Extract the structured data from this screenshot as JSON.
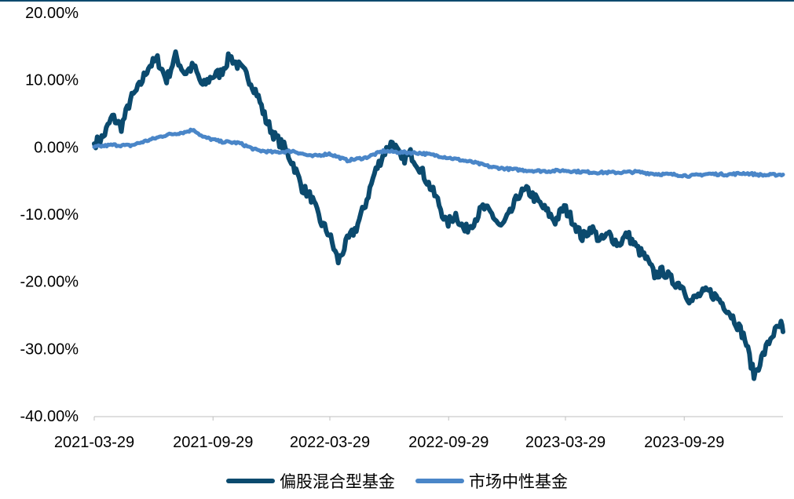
{
  "chart_data": {
    "type": "line",
    "title": "",
    "xlabel": "",
    "ylabel": "",
    "x_ticks": [
      "2021-03-29",
      "2021-09-29",
      "2022-03-29",
      "2022-09-29",
      "2023-03-29",
      "2023-09-29"
    ],
    "y_ticks": [
      "20.00%",
      "10.00%",
      "0.00%",
      "-10.00%",
      "-20.00%",
      "-30.00%",
      "-40.00%"
    ],
    "ylim": [
      -40,
      20
    ],
    "xlim": [
      "2021-03-29",
      "2024-02-29"
    ],
    "grid": false,
    "legend_position": "bottom",
    "series": [
      {
        "name": "偏股混合型基金",
        "color": "#0b4a6e",
        "points": [
          [
            "2021-03-29",
            0.5
          ],
          [
            "2021-04-12",
            1.5
          ],
          [
            "2021-04-26",
            4.5
          ],
          [
            "2021-05-10",
            3.0
          ],
          [
            "2021-05-24",
            7.0
          ],
          [
            "2021-06-07",
            9.0
          ],
          [
            "2021-06-21",
            12.0
          ],
          [
            "2021-07-05",
            13.0
          ],
          [
            "2021-07-19",
            10.0
          ],
          [
            "2021-08-02",
            13.5
          ],
          [
            "2021-08-16",
            11.0
          ],
          [
            "2021-08-30",
            12.0
          ],
          [
            "2021-09-13",
            9.0
          ],
          [
            "2021-09-27",
            10.5
          ],
          [
            "2021-10-11",
            11.0
          ],
          [
            "2021-10-25",
            13.5
          ],
          [
            "2021-11-08",
            12.0
          ],
          [
            "2021-11-22",
            10.5
          ],
          [
            "2021-12-06",
            8.0
          ],
          [
            "2021-12-20",
            4.0
          ],
          [
            "2022-01-03",
            1.5
          ],
          [
            "2022-01-17",
            0.0
          ],
          [
            "2022-01-31",
            -2.5
          ],
          [
            "2022-02-14",
            -6.0
          ],
          [
            "2022-02-28",
            -7.5
          ],
          [
            "2022-03-14",
            -11.0
          ],
          [
            "2022-03-28",
            -13.0
          ],
          [
            "2022-04-11",
            -17.0
          ],
          [
            "2022-04-25",
            -14.0
          ],
          [
            "2022-05-09",
            -12.0
          ],
          [
            "2022-05-23",
            -8.5
          ],
          [
            "2022-06-06",
            -4.0
          ],
          [
            "2022-06-20",
            -1.0
          ],
          [
            "2022-07-04",
            0.8
          ],
          [
            "2022-07-18",
            -2.0
          ],
          [
            "2022-08-01",
            -1.0
          ],
          [
            "2022-08-15",
            -3.0
          ],
          [
            "2022-08-29",
            -5.5
          ],
          [
            "2022-09-12",
            -8.0
          ],
          [
            "2022-09-26",
            -11.5
          ],
          [
            "2022-10-10",
            -10.0
          ],
          [
            "2022-10-24",
            -12.5
          ],
          [
            "2022-11-07",
            -11.0
          ],
          [
            "2022-11-21",
            -9.0
          ],
          [
            "2022-12-05",
            -10.0
          ],
          [
            "2022-12-19",
            -12.0
          ],
          [
            "2023-01-02",
            -10.0
          ],
          [
            "2023-01-16",
            -7.0
          ],
          [
            "2023-01-30",
            -6.5
          ],
          [
            "2023-02-13",
            -8.0
          ],
          [
            "2023-02-27",
            -9.5
          ],
          [
            "2023-03-13",
            -11.0
          ],
          [
            "2023-03-27",
            -9.0
          ],
          [
            "2023-04-10",
            -11.0
          ],
          [
            "2023-04-24",
            -13.5
          ],
          [
            "2023-05-08",
            -12.0
          ],
          [
            "2023-05-22",
            -14.0
          ],
          [
            "2023-06-05",
            -13.0
          ],
          [
            "2023-06-19",
            -14.5
          ],
          [
            "2023-07-03",
            -13.0
          ],
          [
            "2023-07-17",
            -15.0
          ],
          [
            "2023-07-31",
            -16.5
          ],
          [
            "2023-08-14",
            -19.0
          ],
          [
            "2023-08-28",
            -18.5
          ],
          [
            "2023-09-11",
            -20.0
          ],
          [
            "2023-09-25",
            -20.5
          ],
          [
            "2023-10-09",
            -23.0
          ],
          [
            "2023-10-23",
            -22.0
          ],
          [
            "2023-11-06",
            -21.5
          ],
          [
            "2023-11-20",
            -22.5
          ],
          [
            "2023-12-04",
            -24.0
          ],
          [
            "2023-12-18",
            -26.0
          ],
          [
            "2024-01-01",
            -28.5
          ],
          [
            "2024-01-15",
            -34.0
          ],
          [
            "2024-01-29",
            -31.0
          ],
          [
            "2024-02-12",
            -28.0
          ],
          [
            "2024-02-26",
            -26.5
          ],
          [
            "2024-02-29",
            -27.5
          ]
        ]
      },
      {
        "name": "市场中性基金",
        "color": "#4a86c8",
        "points": [
          [
            "2021-03-29",
            0.0
          ],
          [
            "2021-04-26",
            0.3
          ],
          [
            "2021-05-24",
            0.2
          ],
          [
            "2021-06-21",
            1.0
          ],
          [
            "2021-07-19",
            1.8
          ],
          [
            "2021-08-16",
            2.2
          ],
          [
            "2021-08-30",
            2.6
          ],
          [
            "2021-09-13",
            1.5
          ],
          [
            "2021-10-11",
            0.8
          ],
          [
            "2021-11-08",
            0.6
          ],
          [
            "2021-12-06",
            -0.5
          ],
          [
            "2022-01-03",
            -0.8
          ],
          [
            "2022-01-31",
            -0.6
          ],
          [
            "2022-02-28",
            -1.4
          ],
          [
            "2022-03-28",
            -1.0
          ],
          [
            "2022-04-25",
            -2.0
          ],
          [
            "2022-05-23",
            -1.6
          ],
          [
            "2022-06-20",
            -0.6
          ],
          [
            "2022-07-18",
            -0.8
          ],
          [
            "2022-08-15",
            -0.9
          ],
          [
            "2022-09-12",
            -1.3
          ],
          [
            "2022-10-10",
            -1.8
          ],
          [
            "2022-11-07",
            -2.3
          ],
          [
            "2022-12-05",
            -3.0
          ],
          [
            "2023-01-02",
            -3.3
          ],
          [
            "2023-01-30",
            -3.5
          ],
          [
            "2023-02-27",
            -3.6
          ],
          [
            "2023-03-27",
            -3.5
          ],
          [
            "2023-04-24",
            -3.7
          ],
          [
            "2023-05-22",
            -3.8
          ],
          [
            "2023-06-19",
            -3.8
          ],
          [
            "2023-07-17",
            -3.7
          ],
          [
            "2023-08-14",
            -4.0
          ],
          [
            "2023-09-11",
            -4.1
          ],
          [
            "2023-10-09",
            -4.3
          ],
          [
            "2023-11-06",
            -4.0
          ],
          [
            "2023-12-04",
            -4.1
          ],
          [
            "2024-01-01",
            -3.9
          ],
          [
            "2024-01-29",
            -4.2
          ],
          [
            "2024-02-29",
            -4.1
          ]
        ]
      }
    ]
  }
}
